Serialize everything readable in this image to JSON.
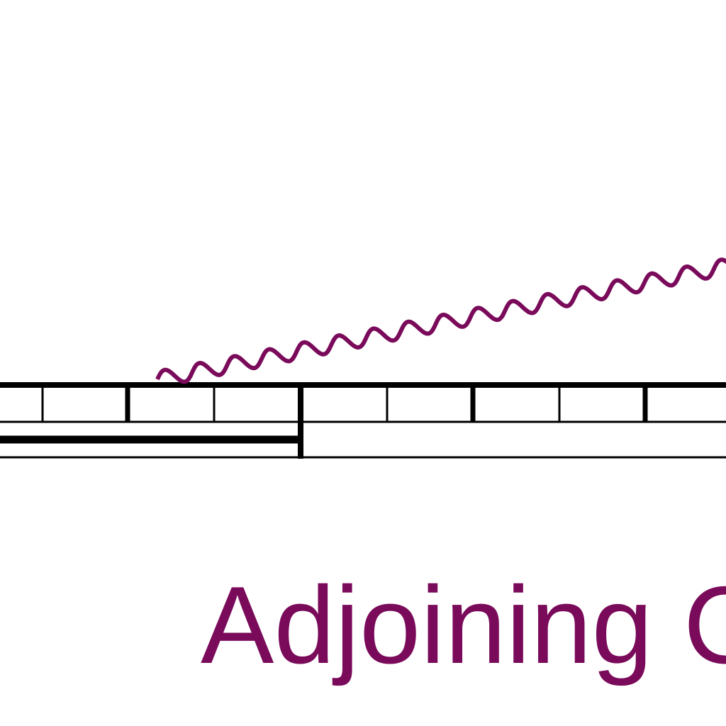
{
  "map": {
    "label": "Adjoining C"
  }
}
